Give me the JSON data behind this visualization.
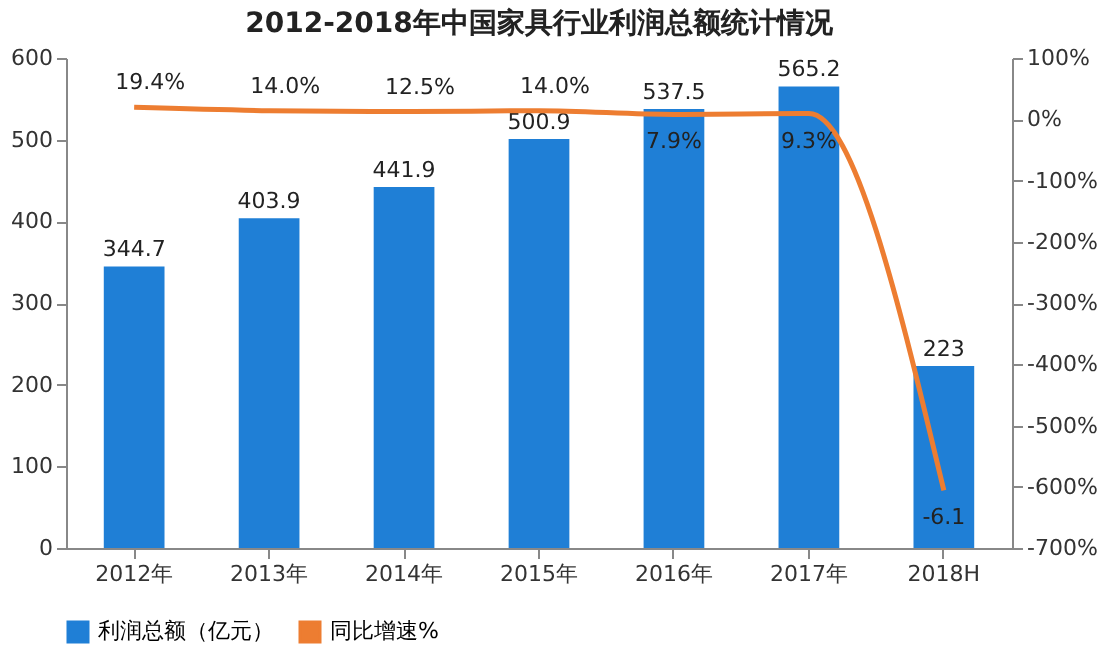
{
  "chart_data": {
    "type": "bar",
    "title": "2012-2018年中国家具行业利润总额统计情况",
    "categories": [
      "2012年",
      "2013年",
      "2014年",
      "2015年",
      "2016年",
      "2017年",
      "2018H"
    ],
    "series": [
      {
        "name": "利润总额（亿元）",
        "color": "#1f7fd6",
        "values": [
          344.7,
          403.9,
          441.9,
          500.9,
          537.5,
          565.2,
          223
        ]
      },
      {
        "name": "同比增速%",
        "type": "line",
        "axis": "y2",
        "color": "#ed7d31",
        "values": [
          19.4,
          14.0,
          12.5,
          14.0,
          7.9,
          9.3,
          -606
        ],
        "value_labels": [
          "19.4%",
          "14.0%",
          "12.5%",
          "14.0%",
          "7.9%",
          "9.3%",
          null
        ]
      }
    ],
    "annotations": [
      "-6.1"
    ],
    "data_labels": true,
    "ylim": [
      0,
      600
    ],
    "yticks": [
      0,
      100,
      200,
      300,
      400,
      500,
      600
    ],
    "y2lim": [
      -700,
      100
    ],
    "y2ticks": [
      {
        "value": -700,
        "label": "-700%"
      },
      {
        "value": -600,
        "label": "-600%"
      },
      {
        "value": -500,
        "label": "-500%"
      },
      {
        "value": -400,
        "label": "-400%"
      },
      {
        "value": -300,
        "label": "-300%"
      },
      {
        "value": -200,
        "label": "-200%"
      },
      {
        "value": -100,
        "label": "-100%"
      },
      {
        "value": 0,
        "label": "0%"
      },
      {
        "value": 100,
        "label": "100%"
      }
    ],
    "grid": false,
    "legend": "bottom",
    "marker": "none",
    "line_style": "solid"
  }
}
